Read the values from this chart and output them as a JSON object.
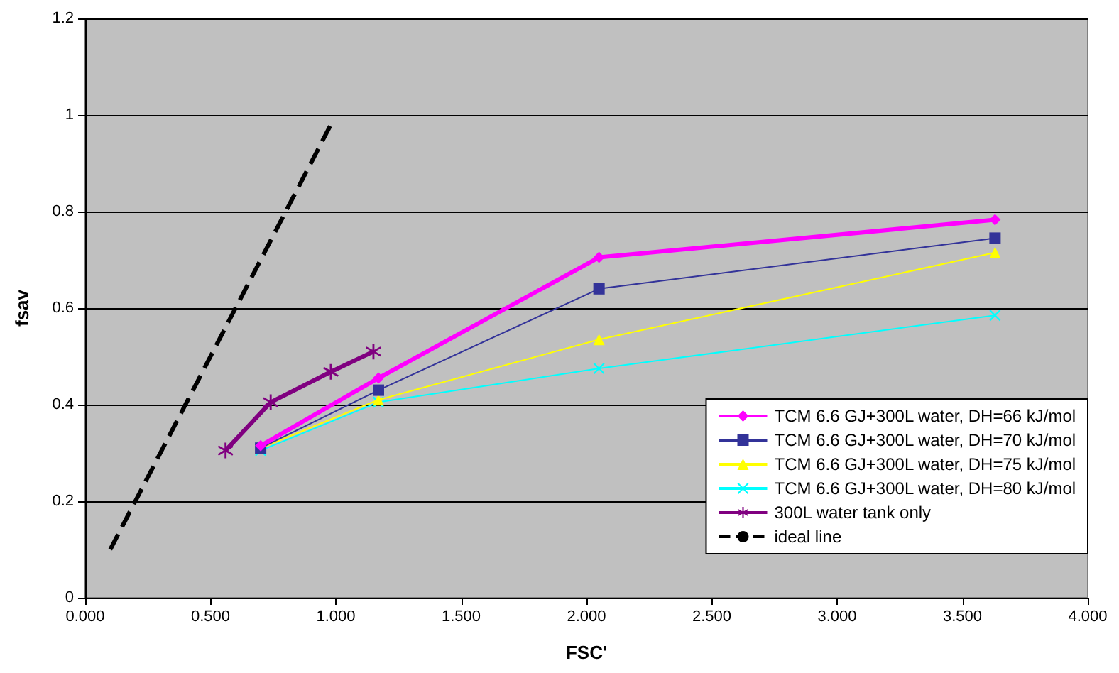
{
  "chart_data": {
    "type": "line",
    "xlabel": "FSC'",
    "ylabel": "fsav",
    "xlim": [
      0,
      4
    ],
    "xticks": [
      {
        "value": 0,
        "label": "0.000"
      },
      {
        "value": 0.5,
        "label": "0.500"
      },
      {
        "value": 1,
        "label": "1.000"
      },
      {
        "value": 1.5,
        "label": "1.500"
      },
      {
        "value": 2,
        "label": "2.000"
      },
      {
        "value": 2.5,
        "label": "2.500"
      },
      {
        "value": 3,
        "label": "3.000"
      },
      {
        "value": 3.5,
        "label": "3.500"
      },
      {
        "value": 4,
        "label": "4.000"
      }
    ],
    "ylim": [
      0,
      1.2
    ],
    "yticks": [
      0,
      0.2,
      0.4,
      0.6,
      0.8,
      1,
      1.2
    ],
    "grid": "y",
    "legend": "bottom right",
    "series": [
      {
        "name": "TCM 6.6 GJ+300L water, DH=66 kJ/mol",
        "color": "#ff00ff",
        "marker": "diamond",
        "x": [
          0.7,
          1.17,
          2.05,
          3.63
        ],
        "values": [
          0.315,
          0.455,
          0.705,
          0.783
        ]
      },
      {
        "name": "TCM 6.6 GJ+300L water, DH=70 kJ/mol",
        "color": "#333399",
        "marker": "square",
        "x": [
          0.7,
          1.17,
          2.05,
          3.63
        ],
        "values": [
          0.31,
          0.43,
          0.64,
          0.745
        ]
      },
      {
        "name": "TCM 6.6 GJ+300L water, DH=75 kJ/mol",
        "color": "#ffff00",
        "marker": "triangle",
        "x": [
          0.7,
          1.17,
          2.05,
          3.63
        ],
        "values": [
          0.31,
          0.41,
          0.535,
          0.715
        ]
      },
      {
        "name": "TCM 6.6 GJ+300L water, DH=80 kJ/mol",
        "color": "#00ffff",
        "marker": "cross",
        "x": [
          0.7,
          1.17,
          2.05,
          3.63
        ],
        "values": [
          0.305,
          0.405,
          0.475,
          0.585
        ]
      },
      {
        "name": "300L water tank only",
        "color": "#800080",
        "marker": "star",
        "x": [
          0.56,
          0.74,
          0.98,
          1.15
        ],
        "values": [
          0.305,
          0.405,
          0.468,
          0.51
        ]
      },
      {
        "name": "ideal line",
        "color": "#000000",
        "marker": "none",
        "line_style": "dashed",
        "x": [
          0.1,
          0.98
        ],
        "values": [
          0.1,
          0.98
        ]
      }
    ]
  }
}
